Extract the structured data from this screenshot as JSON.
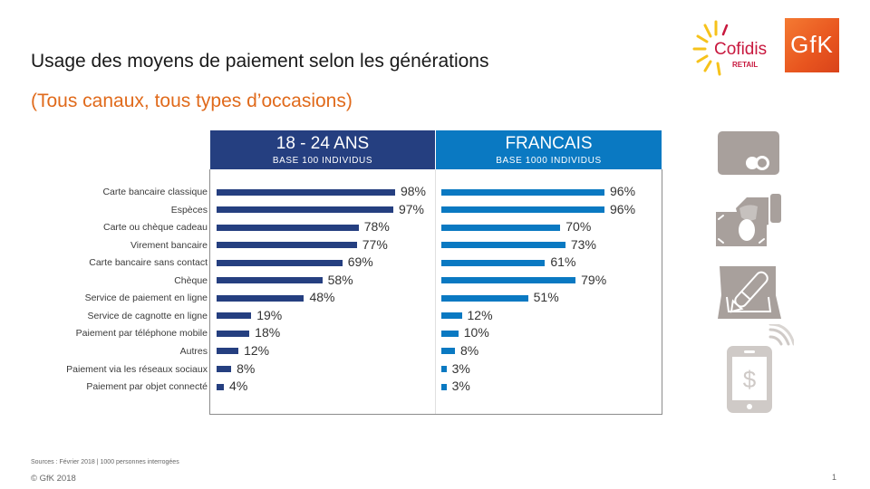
{
  "header": {
    "title": "Usage des moyens de paiement selon les générations",
    "subtitle": "(Tous canaux, tous types d’occasions)"
  },
  "logos": {
    "cofidis_name": "Cofidis",
    "cofidis_sub": "RETAIL",
    "gfk": "GfK"
  },
  "colors": {
    "series_18_24": "#253f80",
    "series_francais": "#0a79c2",
    "subtitle": "#e06a1b",
    "icons": "#a8a09c"
  },
  "chart_data": {
    "type": "bar",
    "orientation": "horizontal",
    "categories": [
      "Carte bancaire classique",
      "Espèces",
      "Carte ou chèque cadeau",
      "Virement bancaire",
      "Carte bancaire sans contact",
      "Chèque",
      "Service de paiement en ligne",
      "Service de cagnotte en ligne",
      "Paiement par téléphone mobile",
      "Autres",
      "Paiement via les réseaux sociaux",
      "Paiement par objet connecté"
    ],
    "series": [
      {
        "name": "18 - 24 ANS",
        "base": "BASE  100 INDIVIDUS",
        "values": [
          98,
          97,
          78,
          77,
          69,
          58,
          48,
          19,
          18,
          12,
          8,
          4
        ],
        "labels": [
          "98%",
          "97%",
          "78%",
          "77%",
          "69%",
          "58%",
          "48%",
          "19%",
          "18%",
          "12%",
          "8%",
          "4%"
        ]
      },
      {
        "name": "FRANCAIS",
        "base": "BASE  1000 INDIVIDUS",
        "values": [
          96,
          96,
          70,
          73,
          61,
          79,
          51,
          12,
          10,
          8,
          3,
          3
        ],
        "labels": [
          "96%",
          "96%",
          "70%",
          "73%",
          "61%",
          "79%",
          "51%",
          "12%",
          "10%",
          "8%",
          "3%",
          "3%"
        ]
      }
    ],
    "title": "Usage des moyens de paiement selon les générations",
    "xlabel": "",
    "ylabel": "",
    "xlim": [
      0,
      100
    ],
    "unit": "%",
    "grid": false
  },
  "side_icons": [
    "credit-card-icon",
    "cash-in-hand-icon",
    "cheque-pen-icon",
    "mobile-payment-icon"
  ],
  "footer": {
    "sources": "Sources : Février 2018 | 1000 personnes interrogées",
    "copyright": "© GfK 2018",
    "page_number": "1"
  }
}
